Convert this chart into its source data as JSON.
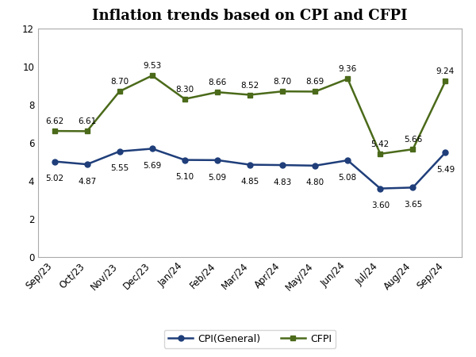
{
  "title": "Inflation trends based on CPI and CFPI",
  "categories": [
    "Sep/23",
    "Oct/23",
    "Nov/23",
    "Dec/23",
    "Jan/24",
    "Feb/24",
    "Mar/24",
    "Apr/24",
    "May/24",
    "Jun/24",
    "Jul/24",
    "Aug/24",
    "Sep/24"
  ],
  "cpi_values": [
    5.02,
    4.87,
    5.55,
    5.69,
    5.1,
    5.09,
    4.85,
    4.83,
    4.8,
    5.08,
    3.6,
    3.65,
    5.49
  ],
  "cfpi_values": [
    6.62,
    6.61,
    8.7,
    9.53,
    8.3,
    8.66,
    8.52,
    8.7,
    8.69,
    9.36,
    5.42,
    5.66,
    9.24
  ],
  "cpi_color": "#1F3E7A",
  "cfpi_color": "#4B6A1A",
  "annotation_color": "#000000",
  "cpi_label": "CPI(General)",
  "cfpi_label": "CFPI",
  "ylim": [
    0,
    12
  ],
  "yticks": [
    0,
    2,
    4,
    6,
    8,
    10,
    12
  ],
  "bg_color": "#FFFFFF",
  "plot_bg_color": "#FFFFFF",
  "border_color": "#AAAAAA",
  "title_fontsize": 13,
  "annotation_fontsize": 7.5,
  "legend_fontsize": 9,
  "tick_fontsize": 8.5
}
